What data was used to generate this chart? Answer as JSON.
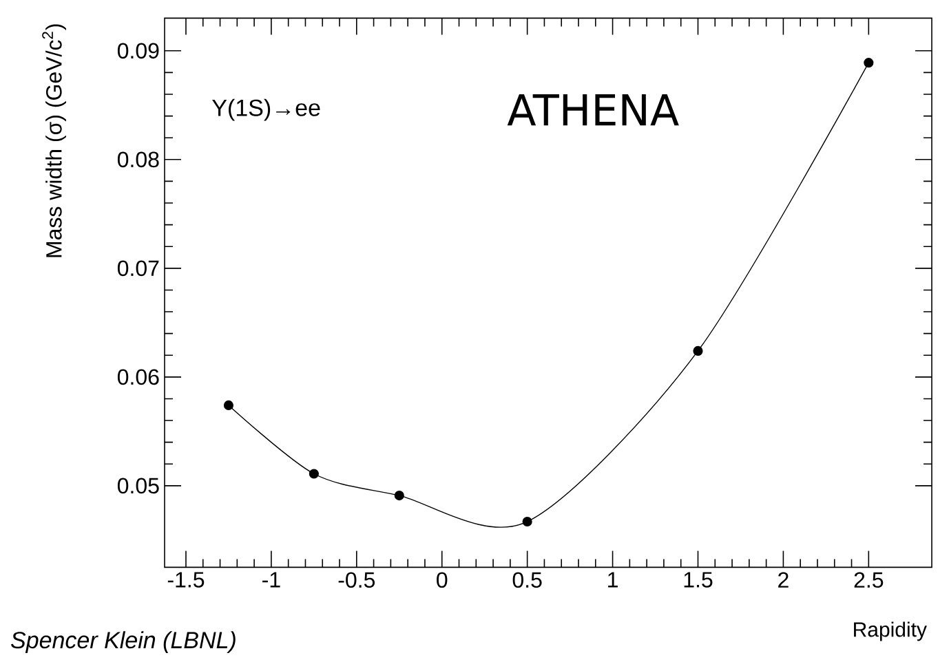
{
  "chart_data": {
    "type": "line",
    "xlabel": "Rapidity",
    "ylabel": "Mass width (σ) (GeV/c$^{2}$)",
    "x": [
      -1.25,
      -0.75,
      -0.25,
      0.5,
      1.5,
      2.5
    ],
    "series": [
      {
        "color": "#000000",
        "values": [
          0.0574,
          0.0511,
          0.0491,
          0.0467,
          0.0624,
          0.0889
        ]
      }
    ],
    "xlim": [
      -1.625,
      2.87
    ],
    "ylim": [
      0.0425,
      0.093
    ],
    "xticks": [
      -1.5,
      -1,
      -0.5,
      0,
      0.5,
      1,
      1.5,
      2,
      2.5
    ],
    "yticks": [
      0.05,
      0.06,
      0.07,
      0.08,
      0.09
    ],
    "marker": "circle",
    "line_style": "solid",
    "grid": false,
    "annotations": [
      "Υ(1S)→ee",
      "ATHENA",
      "Spencer Klein (LBNL)"
    ]
  }
}
